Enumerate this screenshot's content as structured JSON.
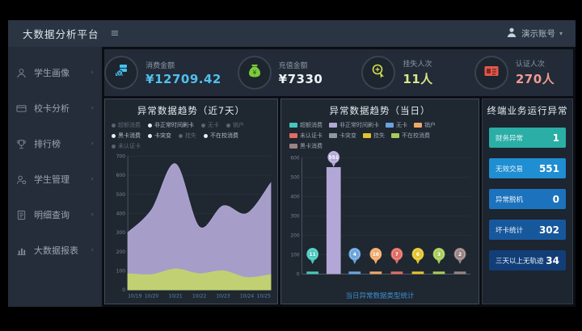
{
  "header": {
    "title": "大数据分析平台",
    "user_name": "演示账号"
  },
  "sidebar": {
    "items": [
      {
        "label": "学生画像",
        "icon": "user-icon"
      },
      {
        "label": "校卡分析",
        "icon": "card-icon"
      },
      {
        "label": "排行榜",
        "icon": "trophy-icon"
      },
      {
        "label": "学生管理",
        "icon": "user-gear-icon"
      },
      {
        "label": "明细查询",
        "icon": "document-icon"
      },
      {
        "label": "大数据报表",
        "icon": "report-icon"
      }
    ]
  },
  "kpis": [
    {
      "label": "消费金额",
      "value": "¥12709.42",
      "icon": "coins-icon",
      "icon_color": "#45c0f0",
      "value_color": "#52bfee"
    },
    {
      "label": "充值金额",
      "value": "¥7330",
      "icon": "moneybag-icon",
      "icon_color": "#7ccb3a",
      "value_color": "#eef3f6"
    },
    {
      "label": "挂失人次",
      "value": "11人",
      "icon": "hand-click-icon",
      "icon_color": "#d5e04e",
      "value_color": "#d9e888"
    },
    {
      "label": "认证人次",
      "value": "270人",
      "icon": "id-card-icon",
      "icon_color": "#e2574d",
      "value_color": "#f09a92"
    }
  ],
  "chart_data": [
    {
      "type": "area",
      "title": "异常数据趋势（近7天）",
      "x": [
        "10/19",
        "10/20",
        "10/21",
        "10/22",
        "10/23",
        "10/24",
        "10/25"
      ],
      "series": [
        {
          "name": "非正常时间刷卡",
          "color": "#b2a7d6",
          "values": [
            300,
            420,
            660,
            330,
            440,
            400,
            560
          ]
        },
        {
          "name": "不在校消费",
          "color": "#c3d56a",
          "values": [
            85,
            80,
            110,
            85,
            100,
            65,
            80
          ]
        }
      ],
      "ylim": [
        0,
        700
      ],
      "yticks": [
        0,
        100,
        200,
        300,
        400,
        500,
        600,
        700
      ],
      "grid": true,
      "legend_position": "top",
      "legend": [
        {
          "label": "超额消费",
          "active": false
        },
        {
          "label": "非正常时间刷卡",
          "active": true
        },
        {
          "label": "无卡",
          "active": false
        },
        {
          "label": "销户",
          "active": false
        },
        {
          "label": "黑卡消费",
          "active": true
        },
        {
          "label": "卡突变",
          "active": true
        },
        {
          "label": "挂失",
          "active": false
        },
        {
          "label": "不在校消费",
          "active": true
        },
        {
          "label": "未认证卡",
          "active": false
        }
      ]
    },
    {
      "type": "bar",
      "title": "异常数据趋势（当日）",
      "categories": [
        "超额消费",
        "非正常时间刷卡",
        "无卡",
        "销户",
        "未认证卡",
        "挂失",
        "不在校消费",
        "黑卡消费"
      ],
      "values": [
        11,
        551,
        4,
        10,
        7,
        6,
        3,
        2
      ],
      "colors": [
        "#45c8bc",
        "#b2a7d6",
        "#6aa3dc",
        "#f0a868",
        "#e06c62",
        "#e3c42f",
        "#a8cc5a",
        "#9b8383"
      ],
      "ylim": [
        0,
        600
      ],
      "yticks": [
        0,
        100,
        200,
        300,
        400,
        500,
        600
      ],
      "grid": true,
      "caption": "当日异常数据类型统计",
      "legend": [
        {
          "label": "超额消费",
          "color": "#45c8bc"
        },
        {
          "label": "非正常时间刷卡",
          "color": "#b2a7d6"
        },
        {
          "label": "无卡",
          "color": "#6aa3dc"
        },
        {
          "label": "销户",
          "color": "#f0a868"
        },
        {
          "label": "未认证卡",
          "color": "#e06c62"
        },
        {
          "label": "卡突变",
          "color": "#8d97a2"
        },
        {
          "label": "挂失",
          "color": "#e3c42f"
        },
        {
          "label": "不在校消费",
          "color": "#a8cc5a"
        },
        {
          "label": "黑卡消费",
          "color": "#9b8383"
        }
      ]
    }
  ],
  "right_panel": {
    "title": "终端业务运行异常",
    "stats": [
      {
        "label": "财务异常",
        "value": "1",
        "bg": "#2aaea6"
      },
      {
        "label": "无效交易",
        "value": "551",
        "bg": "#1f8ed2"
      },
      {
        "label": "异常脱机",
        "value": "0",
        "bg": "#1c72bd"
      },
      {
        "label": "坏卡统计",
        "value": "302",
        "bg": "#17589d"
      },
      {
        "label": "三天以上无轨迹",
        "value": "34",
        "bg": "#123e78"
      }
    ]
  }
}
